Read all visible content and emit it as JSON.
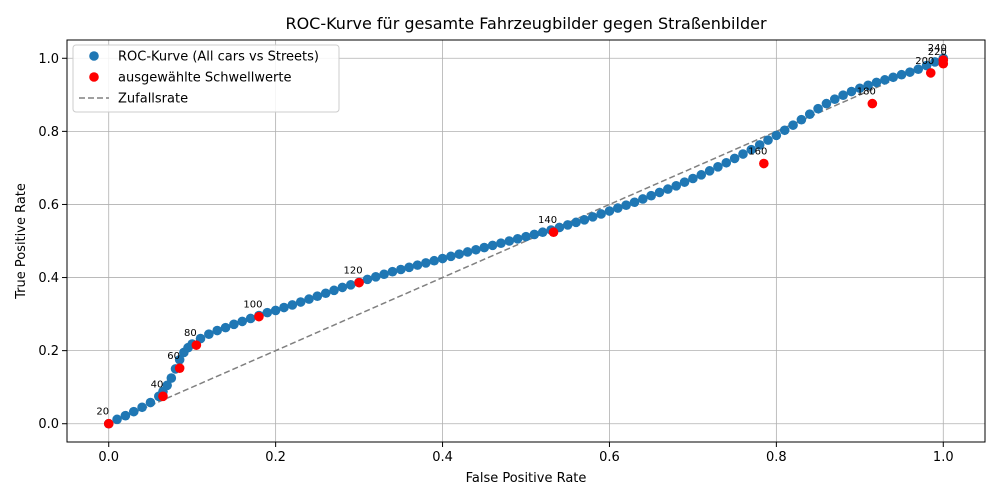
{
  "chart_data": {
    "type": "scatter",
    "title": "ROC-Kurve für gesamte Fahrzeugbilder gegen Straßenbilder",
    "xlabel": "False Positive Rate",
    "ylabel": "True Positive Rate",
    "xlim": [
      -0.05,
      1.05
    ],
    "ylim": [
      -0.05,
      1.05
    ],
    "xticks": [
      "0.0",
      "0.2",
      "0.4",
      "0.6",
      "0.8",
      "1.0"
    ],
    "yticks": [
      "0.0",
      "0.2",
      "0.4",
      "0.6",
      "0.8",
      "1.0"
    ],
    "grid": true,
    "legend_position": "top-left",
    "legend": [
      "ROC-Kurve (All cars vs Streets)",
      "ausgewählte Schwellwerte",
      "Zufallsrate"
    ],
    "colors": {
      "roc": "#1f77b4",
      "thresholds": "#ff0000",
      "random": "#808080"
    },
    "series": [
      {
        "name": "ROC-Kurve (All cars vs Streets)",
        "x": [
          0.0,
          0.01,
          0.02,
          0.03,
          0.04,
          0.05,
          0.06,
          0.065,
          0.07,
          0.075,
          0.08,
          0.085,
          0.09,
          0.095,
          0.1,
          0.11,
          0.12,
          0.13,
          0.14,
          0.15,
          0.16,
          0.17,
          0.18,
          0.19,
          0.2,
          0.21,
          0.22,
          0.23,
          0.24,
          0.25,
          0.26,
          0.27,
          0.28,
          0.29,
          0.3,
          0.31,
          0.32,
          0.33,
          0.34,
          0.35,
          0.36,
          0.37,
          0.38,
          0.39,
          0.4,
          0.41,
          0.42,
          0.43,
          0.44,
          0.45,
          0.46,
          0.47,
          0.48,
          0.49,
          0.5,
          0.51,
          0.52,
          0.53,
          0.54,
          0.55,
          0.56,
          0.57,
          0.58,
          0.59,
          0.6,
          0.61,
          0.62,
          0.63,
          0.64,
          0.65,
          0.66,
          0.67,
          0.68,
          0.69,
          0.7,
          0.71,
          0.72,
          0.73,
          0.74,
          0.75,
          0.76,
          0.77,
          0.78,
          0.79,
          0.8,
          0.81,
          0.82,
          0.83,
          0.84,
          0.85,
          0.86,
          0.87,
          0.88,
          0.89,
          0.9,
          0.91,
          0.92,
          0.93,
          0.94,
          0.95,
          0.96,
          0.97,
          0.98,
          0.99,
          1.0
        ],
        "y": [
          0.0,
          0.012,
          0.022,
          0.033,
          0.045,
          0.058,
          0.075,
          0.088,
          0.105,
          0.125,
          0.15,
          0.175,
          0.195,
          0.208,
          0.218,
          0.233,
          0.245,
          0.255,
          0.263,
          0.272,
          0.28,
          0.288,
          0.296,
          0.304,
          0.31,
          0.318,
          0.325,
          0.333,
          0.341,
          0.349,
          0.357,
          0.365,
          0.373,
          0.38,
          0.387,
          0.395,
          0.402,
          0.409,
          0.416,
          0.422,
          0.428,
          0.434,
          0.44,
          0.446,
          0.452,
          0.458,
          0.464,
          0.47,
          0.476,
          0.482,
          0.488,
          0.494,
          0.5,
          0.506,
          0.512,
          0.518,
          0.524,
          0.53,
          0.537,
          0.544,
          0.551,
          0.558,
          0.566,
          0.574,
          0.582,
          0.59,
          0.598,
          0.606,
          0.615,
          0.624,
          0.633,
          0.642,
          0.651,
          0.661,
          0.671,
          0.681,
          0.692,
          0.703,
          0.714,
          0.726,
          0.738,
          0.75,
          0.763,
          0.776,
          0.789,
          0.803,
          0.817,
          0.832,
          0.847,
          0.862,
          0.876,
          0.888,
          0.899,
          0.909,
          0.918,
          0.926,
          0.934,
          0.941,
          0.948,
          0.955,
          0.962,
          0.97,
          0.98,
          0.99,
          1.0
        ]
      },
      {
        "name": "ausgewählte Schwellwerte",
        "points": [
          {
            "label": "20",
            "x": 0.0,
            "y": 0.0
          },
          {
            "label": "40",
            "x": 0.065,
            "y": 0.075
          },
          {
            "label": "60",
            "x": 0.085,
            "y": 0.152
          },
          {
            "label": "80",
            "x": 0.105,
            "y": 0.215
          },
          {
            "label": "100",
            "x": 0.18,
            "y": 0.293
          },
          {
            "label": "120",
            "x": 0.3,
            "y": 0.386
          },
          {
            "label": "140",
            "x": 0.533,
            "y": 0.524
          },
          {
            "label": "160",
            "x": 0.785,
            "y": 0.712
          },
          {
            "label": "180",
            "x": 0.915,
            "y": 0.876
          },
          {
            "label": "200",
            "x": 0.985,
            "y": 0.96
          },
          {
            "label": "220",
            "x": 1.0,
            "y": 0.985
          },
          {
            "label": "240",
            "x": 1.0,
            "y": 0.995
          }
        ]
      },
      {
        "name": "Zufallsrate",
        "x": [
          0.0,
          1.0
        ],
        "y": [
          0.0,
          1.0
        ]
      }
    ]
  }
}
